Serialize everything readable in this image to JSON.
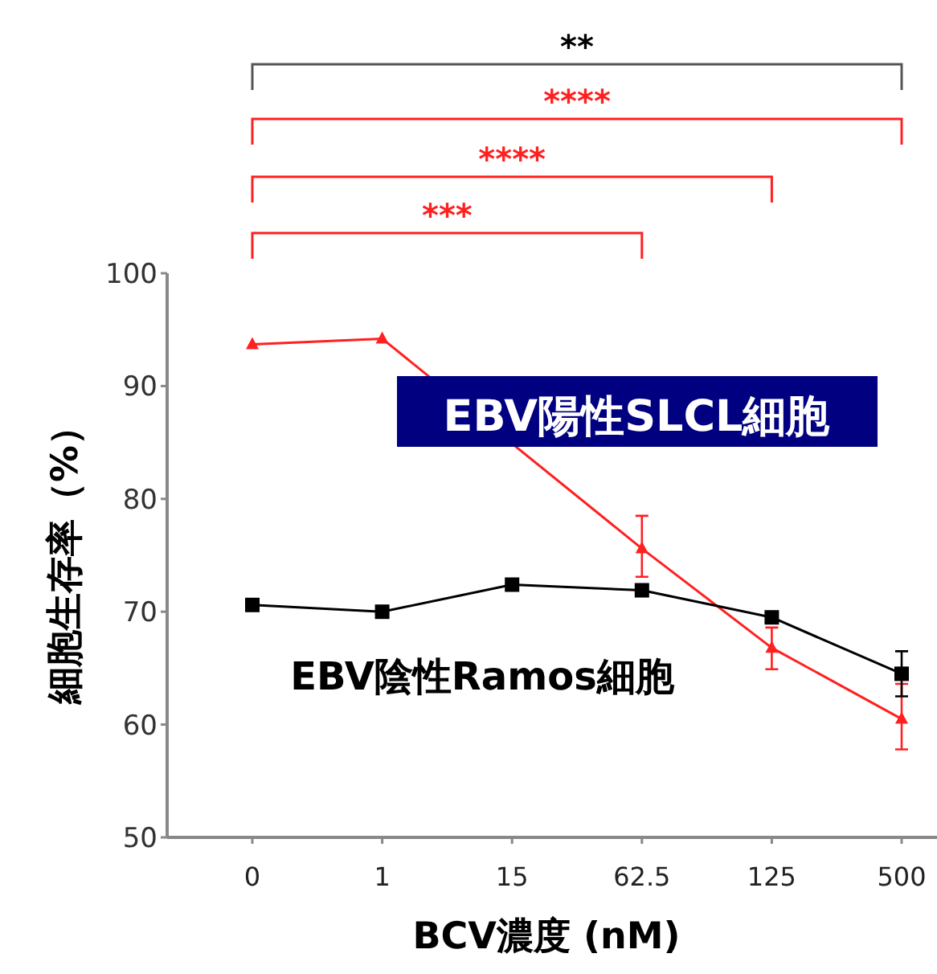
{
  "chart_data": {
    "type": "line",
    "xlabel": "BCV濃度 (nM)",
    "ylabel": "細胞生存率（%）",
    "categories": [
      "0",
      "1",
      "15",
      "62.5",
      "125",
      "500"
    ],
    "ylim": [
      50,
      100
    ],
    "yticks": [
      50,
      60,
      70,
      80,
      90,
      100
    ],
    "grid": false,
    "line_style": "solid",
    "series": [
      {
        "name": "EBV陽性SLCL細胞",
        "color": "#ff2020",
        "marker": "triangle",
        "values": [
          93.7,
          94.2,
          null,
          75.6,
          66.8,
          60.5
        ],
        "errors": [
          null,
          null,
          null,
          [
            73.1,
            78.5
          ],
          [
            64.9,
            68.6
          ],
          [
            57.8,
            63.6
          ]
        ]
      },
      {
        "name": "EBV陰性Ramos細胞",
        "color": "#000000",
        "marker": "square",
        "values": [
          70.6,
          70.0,
          72.4,
          71.9,
          69.5,
          64.5
        ],
        "errors": [
          null,
          null,
          null,
          null,
          null,
          [
            62.5,
            66.5
          ]
        ]
      }
    ],
    "annotations": [
      "**",
      "****",
      "****",
      "***"
    ]
  }
}
